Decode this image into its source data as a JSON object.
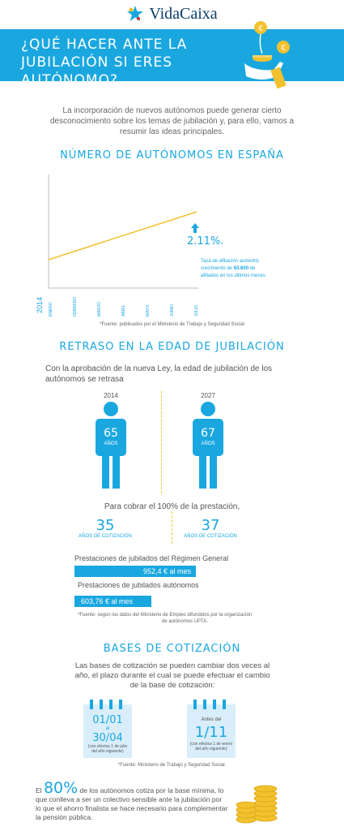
{
  "brand": {
    "name": "VidaCaixa"
  },
  "banner": {
    "title": "¿QUÉ HACER ANTE LA JUBILACIÓN SI ERES AUTÓNOMO?"
  },
  "intro": "La incorporación de nuevos autónomos puede generar cierto desconocimiento sobre los temas de jubilación y, para ello, vamos a resumir las ideas principales.",
  "section1": {
    "title": "NÚMERO DE AUTÓNOMOS EN ESPAÑA",
    "year": "2014",
    "months": [
      "ENERO",
      "FEBRERO",
      "MARZO",
      "ABRIL",
      "MAYO",
      "JUNIO",
      "JULIO"
    ],
    "growth": "2.11%.",
    "growth_note_pre": "Tasa de afiliación aumentó,",
    "growth_note_mid_1": "crecimiento de ",
    "growth_note_bold": "63.600",
    "growth_note_mid_2": " de",
    "growth_note_post": "afiliados en los últimos meses",
    "source": "*Fuente: publicados por el Ministerio de Trabajo y Seguridad Social"
  },
  "chart_data": {
    "type": "line",
    "categories": [
      "ENERO",
      "FEBRERO",
      "MARZO",
      "ABRIL",
      "MAYO",
      "JUNIO",
      "JULIO"
    ],
    "series": [
      {
        "values": [
          0,
          0.352,
          0.704,
          1.055,
          1.407,
          1.759,
          2.11
        ]
      }
    ],
    "annotation": "2.11%.",
    "color": "#f2c12e"
  },
  "section2": {
    "title": "RETRASO EN LA EDAD DE JUBILACIÓN",
    "subtitle": "Con la aprobación de la nueva Ley, la edad de jubilación de los autónomos se retrasa",
    "year_a": "2014",
    "age_a": "65",
    "year_b": "2027",
    "age_b": "67",
    "age_unit": "AÑOS",
    "cobrar": "Para cobrar el 100% de la prestación,",
    "cot_a": "35",
    "cot_b": "37",
    "cot_label": "AÑOS DE COTIZACIÓN",
    "general_label": "Prestaciones de jubilados del Régimen General",
    "general_value": "952,4 € al mes",
    "general_amount": 952.4,
    "autonomos_label": "Prestaciones de jubilados autónomos",
    "autonomos_value": "603,76 € al mes",
    "autonomos_amount": 603.76,
    "source_1": "*Fuente: según los datos del Ministerio de Empleo difundidos por la organización",
    "source_2": "de autónomos UPTA."
  },
  "section3": {
    "title": "BASES DE COTIZACIÓN",
    "text": "Las bases de cotización se pueden cambiar dos veces al año, el plazo durante el cual se puede efectuar el cambio de la base de cotización:",
    "cal1_from": "01/01",
    "cal1_al": "al",
    "cal1_to": "30/04",
    "cal1_note": "(con efectos 1 de julio del año siguiente)",
    "cal2_pre": "Antes del",
    "cal2_date": "1/11",
    "cal2_note": "(con efectos 1 de enero del año siguiente)",
    "source": "*Fuente: Ministerio de Trabajo y Seguridad Social."
  },
  "footer": {
    "el": "El",
    "pct": "80%",
    "text_1": " de los autónomos cotiza por la base mínima, lo",
    "text_2": "que conlleva a ser un colectivo sensible ante la jubilación por",
    "text_3": "lo que el ahorro finalista se hace necesario para complementar",
    "text_4": "la pensión pública."
  },
  "colors": {
    "accent": "#1aa7e0",
    "gold": "#f2c12e",
    "navy": "#0a3d6b"
  },
  "icons": [
    "star-icon",
    "coin-icon",
    "hand-icon",
    "arrow-up-icon",
    "person-icon",
    "calendar-icon",
    "coin-stack-icon"
  ]
}
